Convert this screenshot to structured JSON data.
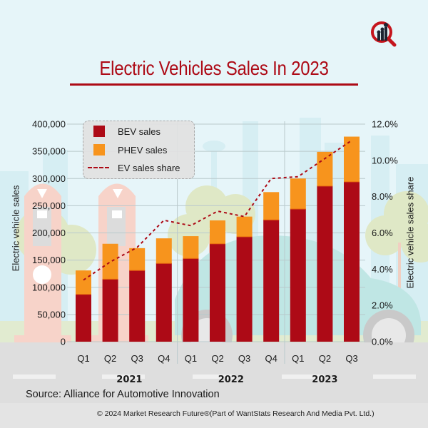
{
  "header": {
    "title": "Electric Vehicles Sales In 2023",
    "logo_icon": "magnifier-bar-chart-icon"
  },
  "colors": {
    "bev": "#ad0a16",
    "phev": "#f7941d",
    "share_line": "#ad0a16",
    "title": "#ad0a16",
    "background": "#e6f5f9"
  },
  "legend": {
    "items": [
      {
        "label": "BEV sales",
        "type": "swatch",
        "color": "#ad0a16"
      },
      {
        "label": "PHEV sales",
        "type": "swatch",
        "color": "#f7941d"
      },
      {
        "label": "EV sales share",
        "type": "dashed-line",
        "color": "#ad0a16"
      }
    ]
  },
  "chart_data": {
    "type": "bar",
    "stacked": true,
    "title": "Electric Vehicles Sales In 2023",
    "categories": [
      "Q1",
      "Q2",
      "Q3",
      "Q4",
      "Q1",
      "Q2",
      "Q3",
      "Q4",
      "Q1",
      "Q2",
      "Q3"
    ],
    "category_groups": [
      {
        "label": "2021",
        "count": 4
      },
      {
        "label": "2022",
        "count": 4
      },
      {
        "label": "2023",
        "count": 3
      }
    ],
    "series": [
      {
        "name": "BEV sales",
        "type": "bar",
        "axis": "left",
        "values": [
          87000,
          115000,
          131000,
          144000,
          153000,
          180000,
          193000,
          224000,
          244000,
          286000,
          294000
        ]
      },
      {
        "name": "PHEV sales",
        "type": "bar",
        "axis": "left",
        "values": [
          44000,
          65000,
          41000,
          46000,
          41000,
          43000,
          37000,
          51000,
          56000,
          63000,
          83000
        ]
      },
      {
        "name": "EV sales share",
        "type": "line",
        "style": "dashed",
        "axis": "right",
        "values": [
          3.4,
          4.4,
          5.2,
          6.7,
          6.4,
          7.2,
          6.9,
          9.0,
          9.1,
          10.1,
          11.1
        ]
      }
    ],
    "ylabel": "Electric vehicle sales",
    "ylim": [
      0,
      400000
    ],
    "yticks": [
      "0",
      "50,000",
      "100,000",
      "150,000",
      "200,000",
      "250,000",
      "300,000",
      "350,000",
      "400,000"
    ],
    "y2label": "Electric vehicle sales share",
    "y2lim": [
      0,
      12
    ],
    "y2ticks": [
      "0.0%",
      "2.0%",
      "4.0%",
      "6.0%",
      "8.0%",
      "10.0%",
      "12.0%"
    ],
    "grid": true,
    "legend_position": "top-left"
  },
  "footer": {
    "source": "Source: Alliance for Automotive Innovation",
    "copyright": "© 2024 Market Research Future®(Part of WantStats Research And Media Pvt. Ltd.)"
  }
}
